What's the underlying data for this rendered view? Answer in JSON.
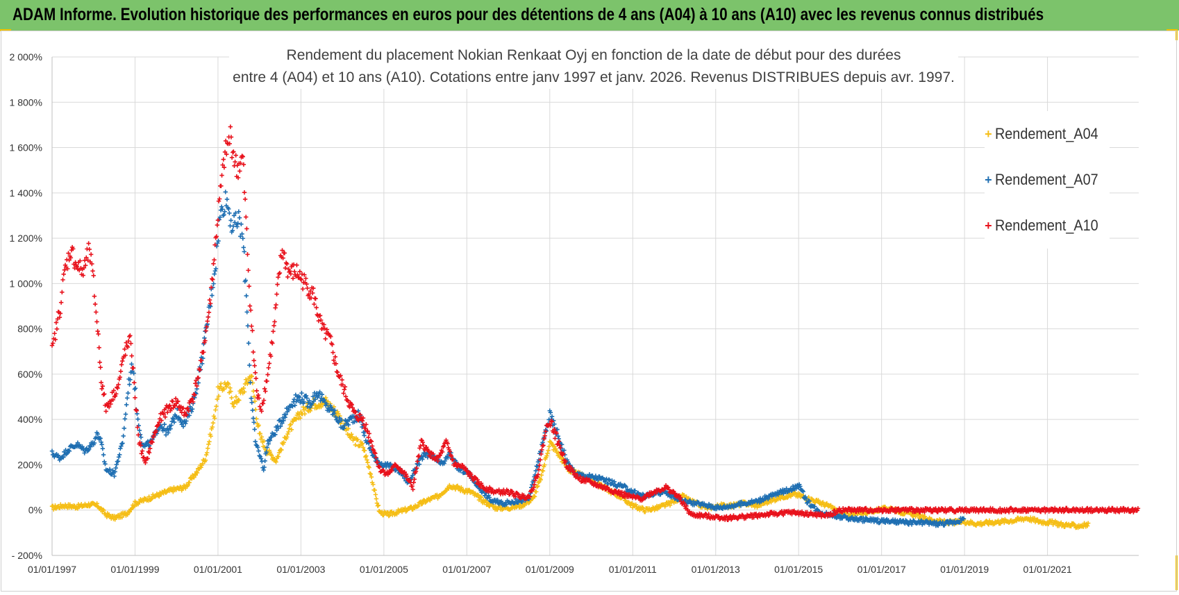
{
  "banner": {
    "title": "ADAM Informe. Evolution historique des performances en euros pour des détentions de 4 ans (A04) à 10 ans (A10) avec les revenus connus distribués"
  },
  "chart_data": {
    "type": "scatter",
    "title_line1": "Rendement du placement Nokian Renkaat Oyj en fonction de la date de début pour des durées",
    "title_line2": "entre 4 (A04) et 10 ans (A10).  Cotations entre janv 1997 et janv. 2026. Revenus  DISTRIBUES depuis avr. 1997.",
    "xlabel": "",
    "ylabel": "",
    "y_ticks": [
      "- 200%",
      "0%",
      "200%",
      "400%",
      "600%",
      "800%",
      "1 000%",
      "1 200%",
      "1 400%",
      "1 600%",
      "1 800%",
      "2 000%"
    ],
    "x_ticks": [
      "01/01/1997",
      "01/01/1999",
      "01/01/2001",
      "01/01/2003",
      "01/01/2005",
      "01/01/2007",
      "01/01/2009",
      "01/01/2011",
      "01/01/2013",
      "01/01/2015",
      "01/01/2017",
      "01/01/2019",
      "01/01/2021"
    ],
    "ylim": [
      -200,
      2000
    ],
    "xlim": [
      1997.0,
      2023.2
    ],
    "grid": true,
    "legend_position": "right",
    "marker": "+",
    "series": [
      {
        "name": "Rendement_A04",
        "color": "#f5be17",
        "points": [
          [
            1997.0,
            10
          ],
          [
            1997.3,
            20
          ],
          [
            1997.6,
            15
          ],
          [
            1997.9,
            25
          ],
          [
            1998.1,
            20
          ],
          [
            1998.3,
            -20
          ],
          [
            1998.5,
            -35
          ],
          [
            1998.8,
            -15
          ],
          [
            1999.0,
            30
          ],
          [
            1999.3,
            50
          ],
          [
            1999.6,
            70
          ],
          [
            1999.9,
            90
          ],
          [
            2000.2,
            100
          ],
          [
            2000.5,
            170
          ],
          [
            2000.7,
            230
          ],
          [
            2000.9,
            400
          ],
          [
            2001.0,
            520
          ],
          [
            2001.2,
            560
          ],
          [
            2001.4,
            470
          ],
          [
            2001.6,
            530
          ],
          [
            2001.8,
            600
          ],
          [
            2002.0,
            330
          ],
          [
            2002.2,
            260
          ],
          [
            2002.4,
            220
          ],
          [
            2002.7,
            350
          ],
          [
            2003.0,
            430
          ],
          [
            2003.3,
            470
          ],
          [
            2003.6,
            480
          ],
          [
            2003.9,
            420
          ],
          [
            2004.2,
            320
          ],
          [
            2004.5,
            280
          ],
          [
            2004.7,
            150
          ],
          [
            2004.8,
            60
          ],
          [
            2004.9,
            -10
          ],
          [
            2005.1,
            -20
          ],
          [
            2005.4,
            -5
          ],
          [
            2005.7,
            10
          ],
          [
            2006.0,
            40
          ],
          [
            2006.3,
            60
          ],
          [
            2006.6,
            110
          ],
          [
            2006.9,
            90
          ],
          [
            2007.1,
            80
          ],
          [
            2007.4,
            40
          ],
          [
            2007.7,
            10
          ],
          [
            2008.0,
            10
          ],
          [
            2008.3,
            20
          ],
          [
            2008.6,
            50
          ],
          [
            2008.8,
            150
          ],
          [
            2009.0,
            300
          ],
          [
            2009.2,
            250
          ],
          [
            2009.5,
            170
          ],
          [
            2009.8,
            150
          ],
          [
            2010.1,
            120
          ],
          [
            2010.4,
            90
          ],
          [
            2010.7,
            60
          ],
          [
            2011.0,
            20
          ],
          [
            2011.3,
            0
          ],
          [
            2011.6,
            10
          ],
          [
            2011.9,
            30
          ],
          [
            2012.2,
            60
          ],
          [
            2012.5,
            30
          ],
          [
            2012.8,
            10
          ],
          [
            2013.1,
            20
          ],
          [
            2013.4,
            20
          ],
          [
            2013.7,
            30
          ],
          [
            2014.0,
            20
          ],
          [
            2014.3,
            40
          ],
          [
            2014.6,
            60
          ],
          [
            2014.9,
            70
          ],
          [
            2015.1,
            60
          ],
          [
            2015.4,
            40
          ],
          [
            2015.7,
            20
          ],
          [
            2016.0,
            -10
          ],
          [
            2016.3,
            -20
          ],
          [
            2016.6,
            -10
          ],
          [
            2016.9,
            0
          ],
          [
            2017.2,
            10
          ],
          [
            2017.5,
            -10
          ],
          [
            2017.8,
            -20
          ],
          [
            2018.1,
            -40
          ],
          [
            2018.4,
            -50
          ],
          [
            2018.7,
            -55
          ],
          [
            2019.0,
            -50
          ],
          [
            2019.3,
            -60
          ],
          [
            2019.6,
            -55
          ],
          [
            2019.9,
            -50
          ],
          [
            2020.2,
            -45
          ],
          [
            2020.5,
            -35
          ],
          [
            2020.8,
            -50
          ],
          [
            2021.1,
            -55
          ],
          [
            2021.4,
            -65
          ],
          [
            2021.7,
            -70
          ],
          [
            2022.0,
            -65
          ]
        ]
      },
      {
        "name": "Rendement_A07",
        "color": "#1f6fb2",
        "points": [
          [
            1997.0,
            250
          ],
          [
            1997.2,
            230
          ],
          [
            1997.4,
            270
          ],
          [
            1997.6,
            290
          ],
          [
            1997.8,
            260
          ],
          [
            1998.0,
            300
          ],
          [
            1998.1,
            340
          ],
          [
            1998.2,
            280
          ],
          [
            1998.3,
            180
          ],
          [
            1998.5,
            160
          ],
          [
            1998.7,
            300
          ],
          [
            1998.85,
            560
          ],
          [
            1998.95,
            650
          ],
          [
            1999.05,
            420
          ],
          [
            1999.2,
            280
          ],
          [
            1999.4,
            300
          ],
          [
            1999.6,
            380
          ],
          [
            1999.8,
            340
          ],
          [
            2000.0,
            430
          ],
          [
            2000.2,
            380
          ],
          [
            2000.4,
            470
          ],
          [
            2000.6,
            650
          ],
          [
            2000.8,
            900
          ],
          [
            2000.95,
            1100
          ],
          [
            2001.05,
            1300
          ],
          [
            2001.2,
            1380
          ],
          [
            2001.35,
            1250
          ],
          [
            2001.5,
            1280
          ],
          [
            2001.6,
            1200
          ],
          [
            2001.7,
            900
          ],
          [
            2001.8,
            500
          ],
          [
            2001.9,
            300
          ],
          [
            2002.0,
            250
          ],
          [
            2002.1,
            180
          ],
          [
            2002.2,
            300
          ],
          [
            2002.4,
            350
          ],
          [
            2002.6,
            420
          ],
          [
            2002.8,
            480
          ],
          [
            2003.0,
            500
          ],
          [
            2003.2,
            470
          ],
          [
            2003.4,
            520
          ],
          [
            2003.6,
            460
          ],
          [
            2003.8,
            430
          ],
          [
            2004.0,
            370
          ],
          [
            2004.2,
            400
          ],
          [
            2004.4,
            420
          ],
          [
            2004.6,
            300
          ],
          [
            2004.8,
            220
          ],
          [
            2005.0,
            200
          ],
          [
            2005.2,
            190
          ],
          [
            2005.4,
            170
          ],
          [
            2005.6,
            120
          ],
          [
            2005.8,
            200
          ],
          [
            2006.0,
            250
          ],
          [
            2006.2,
            230
          ],
          [
            2006.4,
            200
          ],
          [
            2006.6,
            250
          ],
          [
            2006.8,
            180
          ],
          [
            2007.0,
            170
          ],
          [
            2007.3,
            100
          ],
          [
            2007.6,
            40
          ],
          [
            2007.9,
            30
          ],
          [
            2008.2,
            40
          ],
          [
            2008.5,
            50
          ],
          [
            2008.7,
            200
          ],
          [
            2008.9,
            350
          ],
          [
            2009.0,
            420
          ],
          [
            2009.2,
            330
          ],
          [
            2009.4,
            220
          ],
          [
            2009.6,
            160
          ],
          [
            2009.9,
            150
          ],
          [
            2010.2,
            140
          ],
          [
            2010.5,
            120
          ],
          [
            2010.8,
            100
          ],
          [
            2011.0,
            80
          ],
          [
            2011.3,
            60
          ],
          [
            2011.6,
            80
          ],
          [
            2011.9,
            70
          ],
          [
            2012.2,
            40
          ],
          [
            2012.5,
            30
          ],
          [
            2012.8,
            20
          ],
          [
            2013.1,
            10
          ],
          [
            2013.4,
            20
          ],
          [
            2013.7,
            30
          ],
          [
            2014.0,
            40
          ],
          [
            2014.3,
            60
          ],
          [
            2014.6,
            80
          ],
          [
            2014.9,
            100
          ],
          [
            2015.0,
            110
          ],
          [
            2015.2,
            40
          ],
          [
            2015.5,
            -10
          ],
          [
            2015.8,
            -20
          ],
          [
            2016.0,
            -30
          ],
          [
            2016.4,
            -40
          ],
          [
            2016.8,
            -45
          ],
          [
            2017.2,
            -50
          ],
          [
            2017.6,
            -55
          ],
          [
            2018.0,
            -55
          ],
          [
            2018.4,
            -60
          ],
          [
            2018.7,
            -55
          ],
          [
            2019.0,
            -40
          ]
        ]
      },
      {
        "name": "Rendement_A10",
        "color": "#e8121c",
        "points": [
          [
            1997.0,
            700
          ],
          [
            1997.1,
            800
          ],
          [
            1997.2,
            900
          ],
          [
            1997.3,
            1050
          ],
          [
            1997.45,
            1150
          ],
          [
            1997.6,
            1080
          ],
          [
            1997.75,
            1050
          ],
          [
            1997.9,
            1150
          ],
          [
            1998.0,
            1000
          ],
          [
            1998.1,
            800
          ],
          [
            1998.2,
            550
          ],
          [
            1998.3,
            450
          ],
          [
            1998.45,
            500
          ],
          [
            1998.6,
            550
          ],
          [
            1998.75,
            700
          ],
          [
            1998.9,
            750
          ],
          [
            1999.0,
            500
          ],
          [
            1999.1,
            300
          ],
          [
            1999.25,
            200
          ],
          [
            1999.4,
            300
          ],
          [
            1999.6,
            400
          ],
          [
            1999.8,
            450
          ],
          [
            2000.0,
            480
          ],
          [
            2000.2,
            420
          ],
          [
            2000.4,
            500
          ],
          [
            2000.6,
            650
          ],
          [
            2000.8,
            900
          ],
          [
            2001.0,
            1300
          ],
          [
            2001.15,
            1550
          ],
          [
            2001.3,
            1650
          ],
          [
            2001.45,
            1500
          ],
          [
            2001.6,
            1550
          ],
          [
            2001.75,
            1000
          ],
          [
            2001.85,
            700
          ],
          [
            2001.95,
            500
          ],
          [
            2002.05,
            450
          ],
          [
            2002.2,
            600
          ],
          [
            2002.35,
            800
          ],
          [
            2002.45,
            1000
          ],
          [
            2002.55,
            1150
          ],
          [
            2002.7,
            1050
          ],
          [
            2002.9,
            1050
          ],
          [
            2003.1,
            1000
          ],
          [
            2003.3,
            950
          ],
          [
            2003.5,
            800
          ],
          [
            2003.7,
            750
          ],
          [
            2003.9,
            600
          ],
          [
            2004.1,
            500
          ],
          [
            2004.3,
            420
          ],
          [
            2004.5,
            400
          ],
          [
            2004.7,
            300
          ],
          [
            2004.9,
            180
          ],
          [
            2005.1,
            160
          ],
          [
            2005.3,
            200
          ],
          [
            2005.5,
            160
          ],
          [
            2005.7,
            100
          ],
          [
            2005.9,
            300
          ],
          [
            2006.1,
            250
          ],
          [
            2006.3,
            220
          ],
          [
            2006.5,
            300
          ],
          [
            2006.7,
            200
          ],
          [
            2006.9,
            190
          ],
          [
            2007.1,
            150
          ],
          [
            2007.4,
            100
          ],
          [
            2007.7,
            80
          ],
          [
            2008.0,
            80
          ],
          [
            2008.3,
            60
          ],
          [
            2008.5,
            60
          ],
          [
            2008.7,
            150
          ],
          [
            2008.9,
            350
          ],
          [
            2009.0,
            400
          ],
          [
            2009.2,
            300
          ],
          [
            2009.4,
            200
          ],
          [
            2009.7,
            140
          ],
          [
            2010.0,
            120
          ],
          [
            2010.3,
            100
          ],
          [
            2010.6,
            80
          ],
          [
            2010.9,
            60
          ],
          [
            2011.2,
            50
          ],
          [
            2011.5,
            80
          ],
          [
            2011.8,
            100
          ],
          [
            2012.1,
            60
          ],
          [
            2012.4,
            -20
          ],
          [
            2012.7,
            -25
          ],
          [
            2013.0,
            -30
          ],
          [
            2013.3,
            -35
          ],
          [
            2013.6,
            -30
          ],
          [
            2013.9,
            -25
          ],
          [
            2014.2,
            -20
          ],
          [
            2014.5,
            -15
          ],
          [
            2014.8,
            -10
          ],
          [
            2015.1,
            -15
          ],
          [
            2015.4,
            -20
          ],
          [
            2015.7,
            -25
          ],
          [
            2016.0,
            0
          ],
          [
            2016.5,
            0
          ],
          [
            2017.0,
            0
          ],
          [
            2017.5,
            0
          ],
          [
            2018.0,
            0
          ],
          [
            2018.5,
            0
          ],
          [
            2019.0,
            0
          ],
          [
            2019.5,
            0
          ],
          [
            2020.0,
            0
          ],
          [
            2020.5,
            0
          ],
          [
            2021.0,
            0
          ],
          [
            2021.5,
            0
          ],
          [
            2022.0,
            0
          ],
          [
            2022.5,
            0
          ],
          [
            2023.0,
            0
          ],
          [
            2023.2,
            0
          ]
        ]
      }
    ]
  }
}
